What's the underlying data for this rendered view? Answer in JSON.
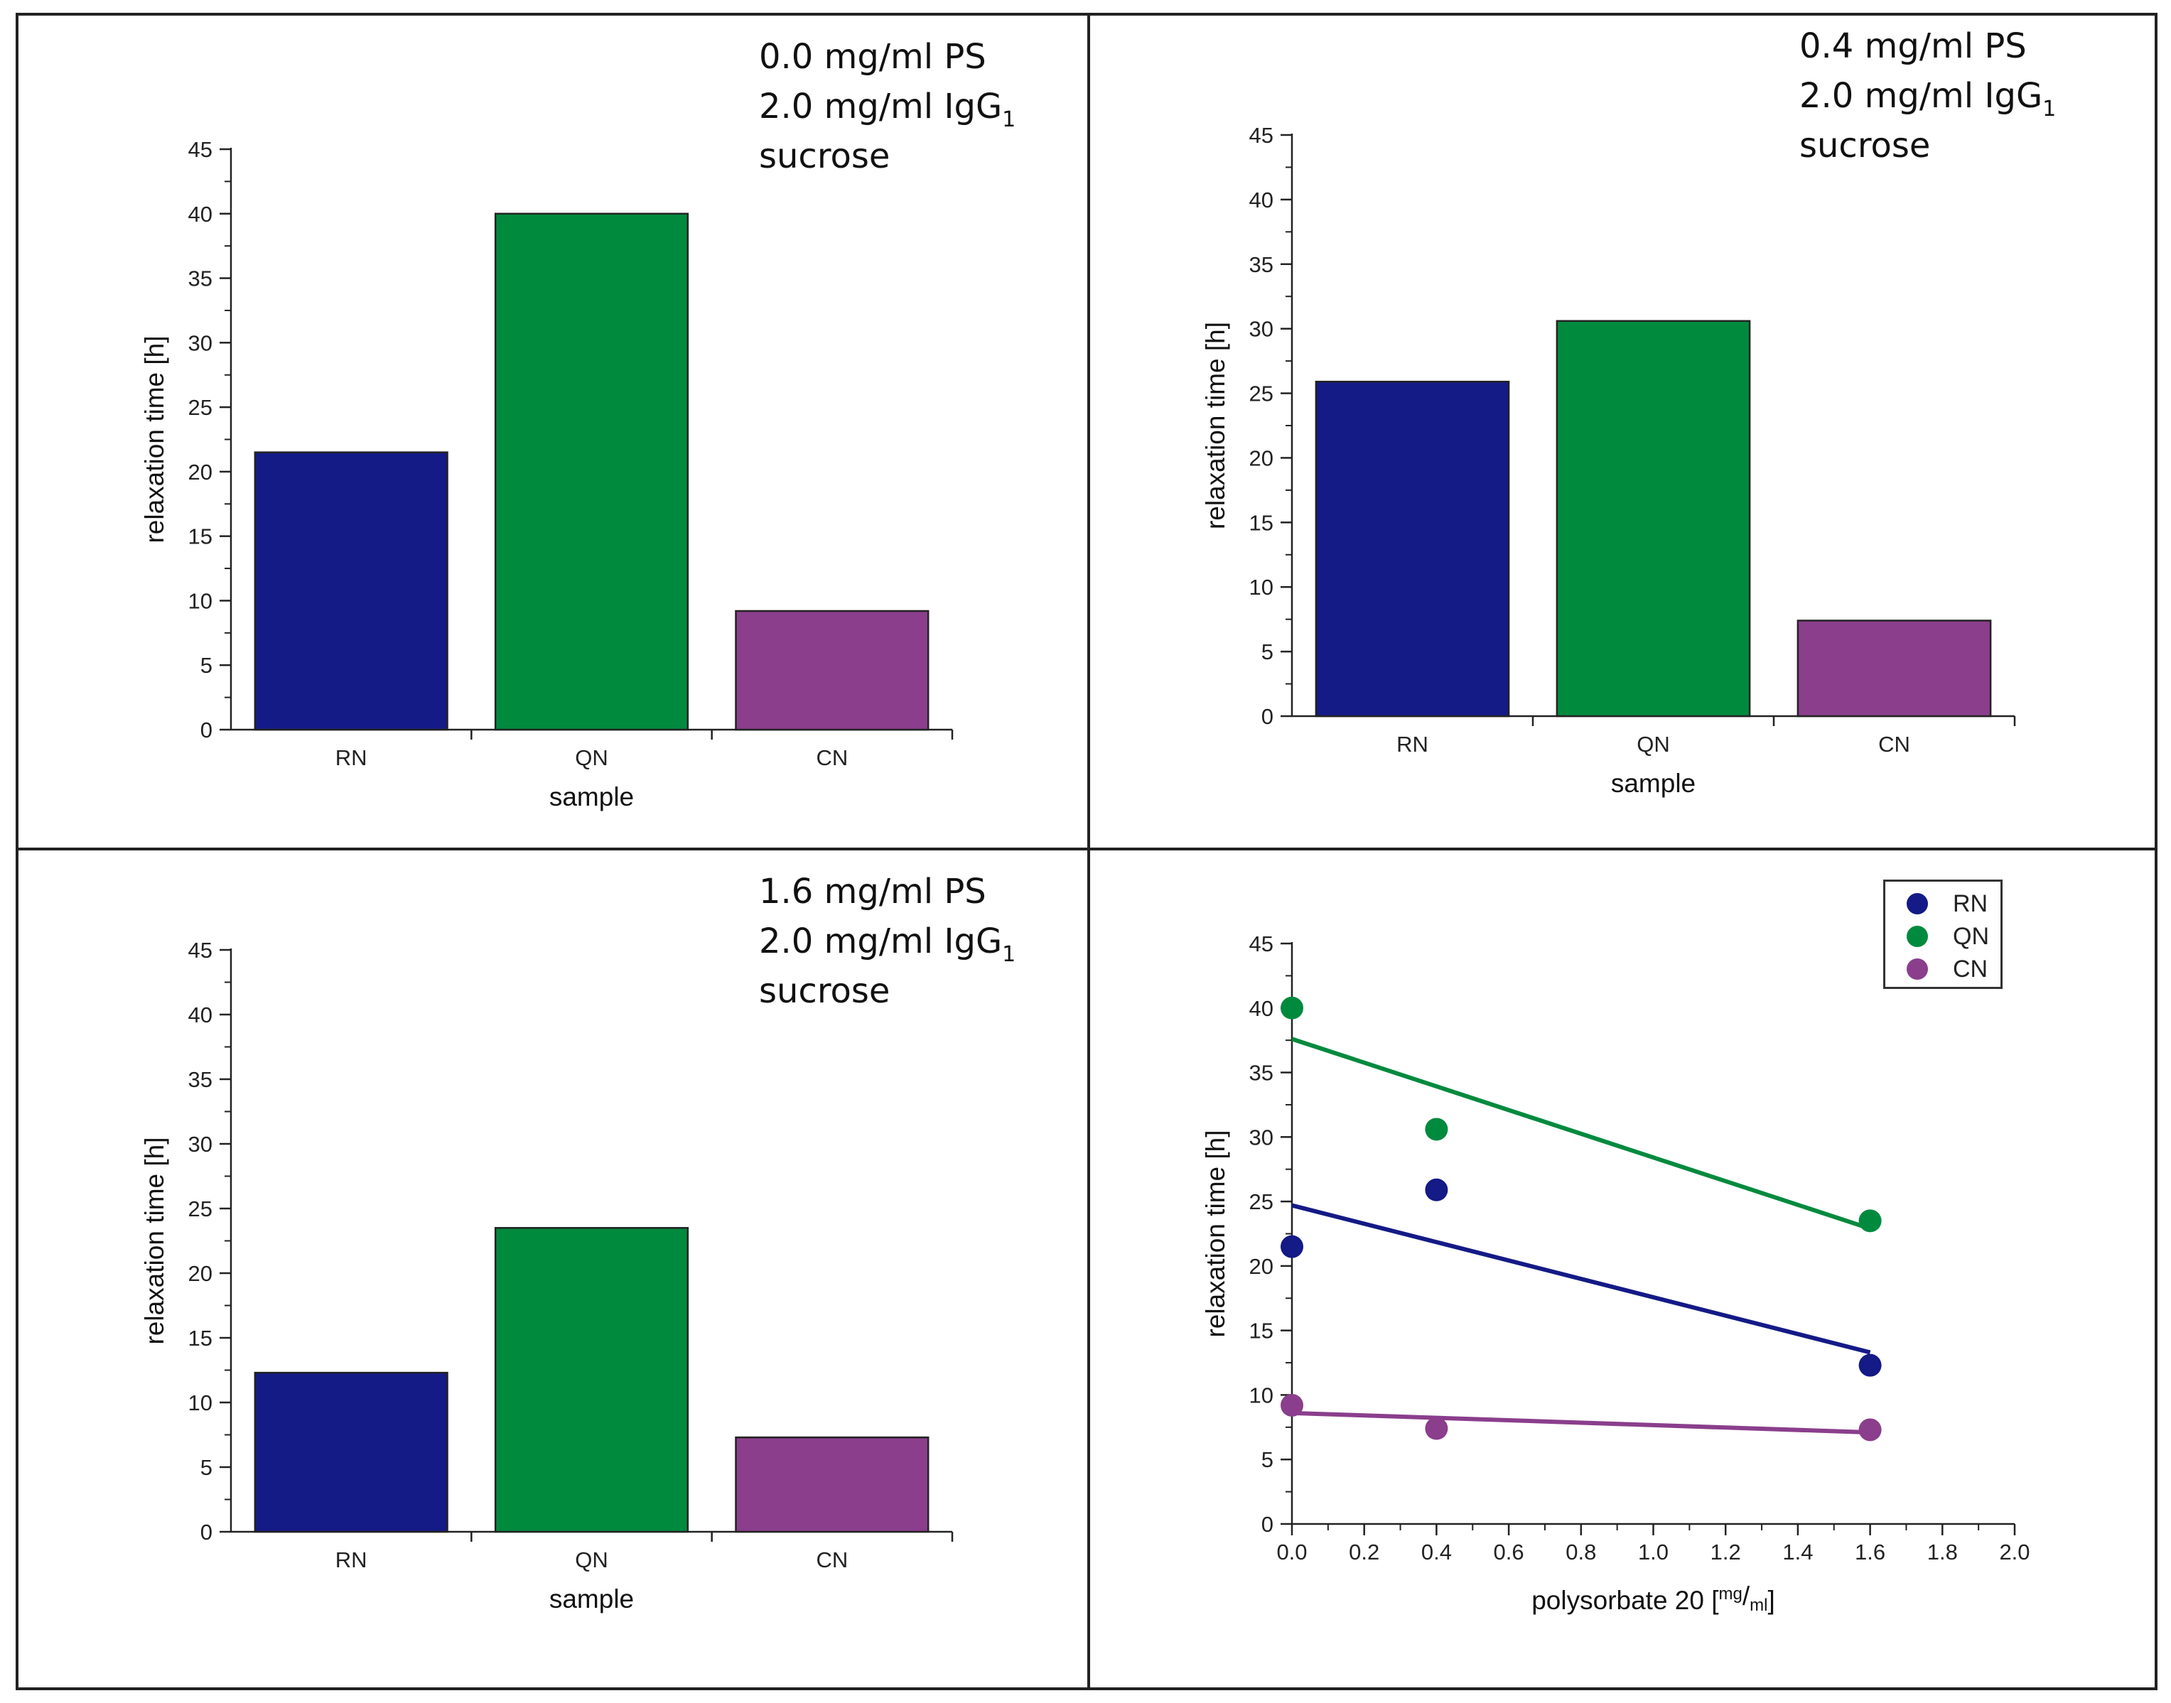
{
  "colors": {
    "RN": "#141a86",
    "QN": "#008a3e",
    "CN": "#8a3e8c"
  },
  "panels": [
    {
      "conditions": [
        "0.0 mg/ml PS",
        "2.0 mg/ml IgG",
        "sucrose"
      ],
      "subscript": "1"
    },
    {
      "conditions": [
        "0.4 mg/ml PS",
        "2.0 mg/ml IgG",
        "sucrose"
      ],
      "subscript": "1"
    },
    {
      "conditions": [
        "1.6 mg/ml PS",
        "2.0 mg/ml IgG",
        "sucrose"
      ],
      "subscript": "1"
    }
  ],
  "chart_data": [
    {
      "type": "bar",
      "title": "",
      "categories": [
        "RN",
        "QN",
        "CN"
      ],
      "values": [
        21.5,
        40.0,
        9.2
      ],
      "xlabel": "sample",
      "ylabel": "relaxation time [h]",
      "ylim": [
        0,
        45
      ],
      "yticks": [
        "0",
        "5",
        "10",
        "15",
        "20",
        "25",
        "30",
        "35",
        "40",
        "45"
      ]
    },
    {
      "type": "bar",
      "title": "",
      "categories": [
        "RN",
        "QN",
        "CN"
      ],
      "values": [
        25.9,
        30.6,
        7.4
      ],
      "xlabel": "sample",
      "ylabel": "relaxation time [h]",
      "ylim": [
        0,
        45
      ],
      "yticks": [
        "0",
        "5",
        "10",
        "15",
        "20",
        "25",
        "30",
        "35",
        "40",
        "45"
      ]
    },
    {
      "type": "bar",
      "title": "",
      "categories": [
        "RN",
        "QN",
        "CN"
      ],
      "values": [
        12.3,
        23.5,
        7.3
      ],
      "xlabel": "sample",
      "ylabel": "relaxation time [h]",
      "ylim": [
        0,
        45
      ],
      "yticks": [
        "0",
        "5",
        "10",
        "15",
        "20",
        "25",
        "30",
        "35",
        "40",
        "45"
      ]
    },
    {
      "type": "scatter",
      "title": "",
      "xlabel": "polysorbate 20 [",
      "xlabel_unit_num": "mg",
      "xlabel_unit_den": "ml",
      "xlabel_close": "]",
      "ylabel": "relaxation time [h]",
      "xlim": [
        0,
        2.0
      ],
      "ylim": [
        0,
        45
      ],
      "xticks": [
        "0.0",
        "0.2",
        "0.4",
        "0.6",
        "0.8",
        "1.0",
        "1.2",
        "1.4",
        "1.6",
        "1.8",
        "2.0"
      ],
      "yticks": [
        "0",
        "5",
        "10",
        "15",
        "20",
        "25",
        "30",
        "35",
        "40",
        "45"
      ],
      "legend": [
        "RN",
        "QN",
        "CN"
      ],
      "legend_position": "top-right",
      "series": [
        {
          "name": "RN",
          "x": [
            0.0,
            0.4,
            1.6
          ],
          "y": [
            21.5,
            25.9,
            12.3
          ],
          "fit": [
            24.7,
            13.3
          ]
        },
        {
          "name": "QN",
          "x": [
            0.0,
            0.4,
            1.6
          ],
          "y": [
            40.0,
            30.6,
            23.5
          ],
          "fit": [
            37.6,
            22.9
          ]
        },
        {
          "name": "CN",
          "x": [
            0.0,
            0.4,
            1.6
          ],
          "y": [
            9.2,
            7.4,
            7.3
          ],
          "fit": [
            8.6,
            7.1
          ]
        }
      ]
    }
  ]
}
